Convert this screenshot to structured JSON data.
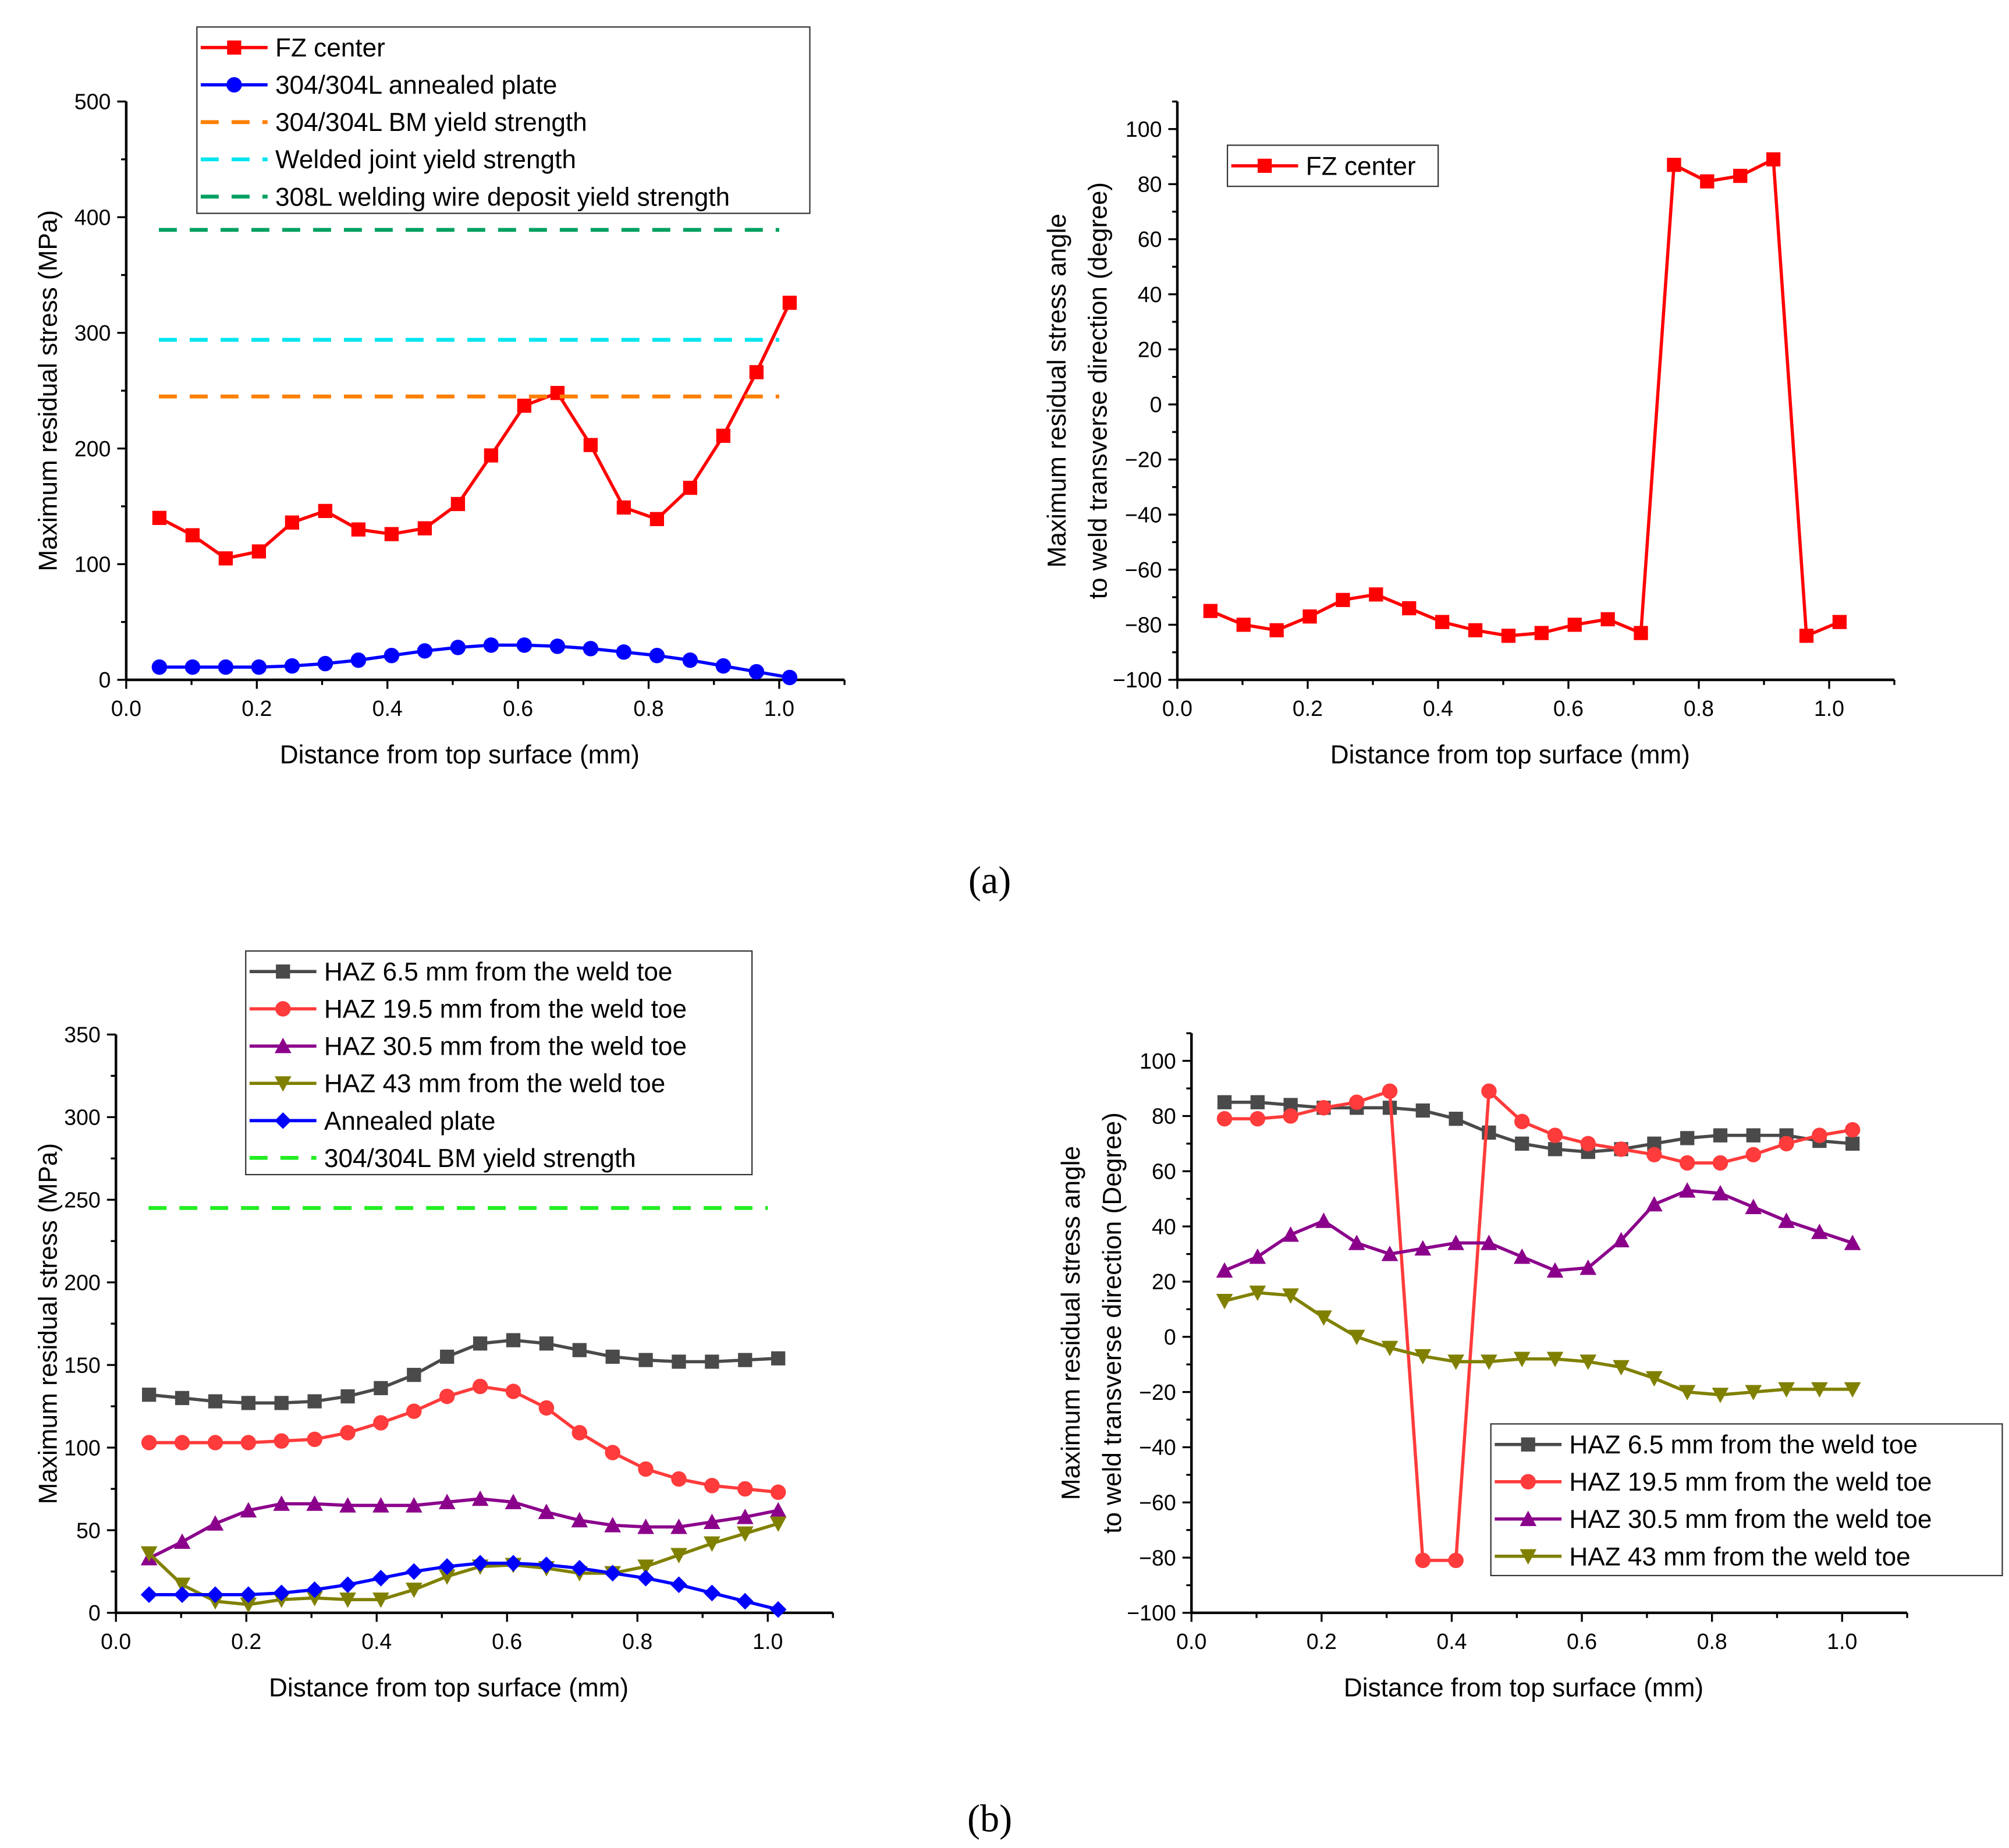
{
  "panel_labels": {
    "a": "(a)",
    "b": "(b)"
  },
  "chart_data": [
    {
      "id": "a-left",
      "type": "line",
      "xlabel": "Distance from top surface (mm)",
      "ylabel": [
        "Maximum residual stress (MPa)"
      ],
      "xlim": [
        0,
        1.1
      ],
      "ylim": [
        0,
        500
      ],
      "xticks": [
        0,
        0.2,
        0.4,
        0.6,
        0.8,
        1.0
      ],
      "yticks": [
        0,
        100,
        200,
        300,
        400,
        500
      ],
      "xminor": 0.1,
      "yminor": 50,
      "legend_position": "top",
      "series": [
        {
          "name": "FZ center",
          "color": "#ff0000",
          "marker": "square",
          "y": [
            140,
            125,
            105,
            111,
            136,
            146,
            130,
            126,
            131,
            152,
            194,
            237,
            248,
            203,
            149,
            139,
            166,
            211,
            266,
            326
          ]
        },
        {
          "name": "304/304L annealed plate",
          "color": "#0000ff",
          "marker": "circle",
          "y": [
            11,
            11,
            11,
            11,
            12,
            14,
            17,
            21,
            25,
            28,
            30,
            30,
            29,
            27,
            24,
            21,
            17,
            12,
            7,
            2
          ]
        },
        {
          "name": "304/304L BM yield strength",
          "color": "#ff7f00",
          "dashed": true,
          "y": [
            245,
            245
          ]
        },
        {
          "name": "Welded joint yield strength",
          "color": "#00e5ee",
          "dashed": true,
          "y": [
            294,
            294
          ]
        },
        {
          "name": "308L welding wire deposit yield strength",
          "color": "#00a060",
          "dashed": true,
          "y": [
            389,
            389
          ]
        }
      ]
    },
    {
      "id": "a-right",
      "type": "line",
      "xlabel": "Distance from top surface (mm)",
      "ylabel": [
        "Maximum residual stress angle",
        "to weld transverse direction (degree)"
      ],
      "xlim": [
        0,
        1.1
      ],
      "ylim": [
        -100,
        110
      ],
      "xticks": [
        0,
        0.2,
        0.4,
        0.6,
        0.8,
        1.0
      ],
      "yticks": [
        -100,
        -80,
        -60,
        -40,
        -20,
        0,
        20,
        40,
        60,
        80,
        100
      ],
      "xminor": 0.1,
      "yminor": 10,
      "legend_position": "top-left",
      "series": [
        {
          "name": "FZ center",
          "color": "#ff0000",
          "marker": "square",
          "y": [
            -75,
            -80,
            -82,
            -77,
            -71,
            -69,
            -74,
            -79,
            -82,
            -84,
            -83,
            -80,
            -78,
            -83,
            87,
            81,
            83,
            89,
            -84,
            -79
          ]
        }
      ]
    },
    {
      "id": "b-left",
      "type": "line",
      "xlabel": "Distance from top surface (mm)",
      "ylabel": [
        "Maximum residual stress (MPa)"
      ],
      "xlim": [
        0,
        1.1
      ],
      "ylim": [
        0,
        350
      ],
      "xticks": [
        0,
        0.2,
        0.4,
        0.6,
        0.8,
        1.0
      ],
      "yticks": [
        0,
        50,
        100,
        150,
        200,
        250,
        300,
        350
      ],
      "xminor": 0.1,
      "yminor": 25,
      "legend_position": "top",
      "series": [
        {
          "name": "HAZ 6.5 mm from the weld toe",
          "color": "#4a4a4a",
          "marker": "square",
          "y": [
            132,
            130,
            128,
            127,
            127,
            128,
            131,
            136,
            144,
            155,
            163,
            165,
            163,
            159,
            155,
            153,
            152,
            152,
            153,
            154
          ]
        },
        {
          "name": "HAZ 19.5 mm from the weld toe",
          "color": "#ff3b3b",
          "marker": "circle",
          "y": [
            103,
            103,
            103,
            103,
            104,
            105,
            109,
            115,
            122,
            131,
            137,
            134,
            124,
            109,
            97,
            87,
            81,
            77,
            75,
            73
          ]
        },
        {
          "name": "HAZ 30.5 mm from the weld toe",
          "color": "#8b008b",
          "marker": "triangle-up",
          "y": [
            33,
            43,
            54,
            62,
            66,
            66,
            65,
            65,
            65,
            67,
            69,
            67,
            61,
            56,
            53,
            52,
            52,
            55,
            58,
            62
          ]
        },
        {
          "name": "HAZ 43 mm from the weld toe",
          "color": "#808000",
          "marker": "triangle-down",
          "y": [
            36,
            17,
            7,
            5,
            8,
            9,
            8,
            8,
            14,
            22,
            28,
            29,
            27,
            24,
            24,
            28,
            35,
            42,
            48,
            54
          ]
        },
        {
          "name": "Annealed plate",
          "color": "#0000ff",
          "marker": "diamond",
          "y": [
            11,
            11,
            11,
            11,
            12,
            14,
            17,
            21,
            25,
            28,
            30,
            30,
            29,
            27,
            24,
            21,
            17,
            12,
            7,
            2
          ]
        },
        {
          "name": "304/304L BM yield strength",
          "color": "#22ee22",
          "dashed": true,
          "y": [
            245,
            245
          ]
        }
      ]
    },
    {
      "id": "b-right",
      "type": "line",
      "xlabel": "Distance from top surface (mm)",
      "ylabel": [
        "Maximum residual stress angle",
        "to weld transverse direction (Degree)"
      ],
      "xlim": [
        0,
        1.1
      ],
      "ylim": [
        -100,
        110
      ],
      "xticks": [
        0,
        0.2,
        0.4,
        0.6,
        0.8,
        1.0
      ],
      "yticks": [
        -100,
        -80,
        -60,
        -40,
        -20,
        0,
        20,
        40,
        60,
        80,
        100
      ],
      "xminor": 0.1,
      "yminor": 10,
      "legend_position": "bottom-right",
      "series": [
        {
          "name": "HAZ 6.5 mm from the weld toe",
          "color": "#4a4a4a",
          "marker": "square",
          "y": [
            85,
            85,
            84,
            83,
            83,
            83,
            82,
            79,
            74,
            70,
            68,
            67,
            68,
            70,
            72,
            73,
            73,
            73,
            71,
            70
          ]
        },
        {
          "name": "HAZ 19.5 mm from the weld toe",
          "color": "#ff3b3b",
          "marker": "circle",
          "y": [
            79,
            79,
            80,
            83,
            85,
            89,
            -81,
            -81,
            89,
            78,
            73,
            70,
            68,
            66,
            63,
            63,
            66,
            70,
            73,
            75
          ]
        },
        {
          "name": "HAZ 30.5 mm from the weld toe",
          "color": "#8b008b",
          "marker": "triangle-up",
          "y": [
            24,
            29,
            37,
            42,
            34,
            30,
            32,
            34,
            34,
            29,
            24,
            25,
            35,
            48,
            53,
            52,
            47,
            42,
            38,
            34
          ]
        },
        {
          "name": "HAZ 43 mm from the weld toe",
          "color": "#808000",
          "marker": "triangle-down",
          "y": [
            13,
            16,
            15,
            7,
            0,
            -4,
            -7,
            -9,
            -9,
            -8,
            -8,
            -9,
            -11,
            -15,
            -20,
            -21,
            -20,
            -19,
            -19,
            -19
          ]
        }
      ]
    }
  ],
  "x_values": [
    0.0508,
    0.1016,
    0.1524,
    0.2032,
    0.254,
    0.3048,
    0.3556,
    0.4064,
    0.4572,
    0.508,
    0.5588,
    0.6096,
    0.6604,
    0.7112,
    0.762,
    0.8128,
    0.8636,
    0.9144,
    0.9652,
    1.016
  ],
  "dashed_x_range": [
    0.05,
    1.0
  ]
}
